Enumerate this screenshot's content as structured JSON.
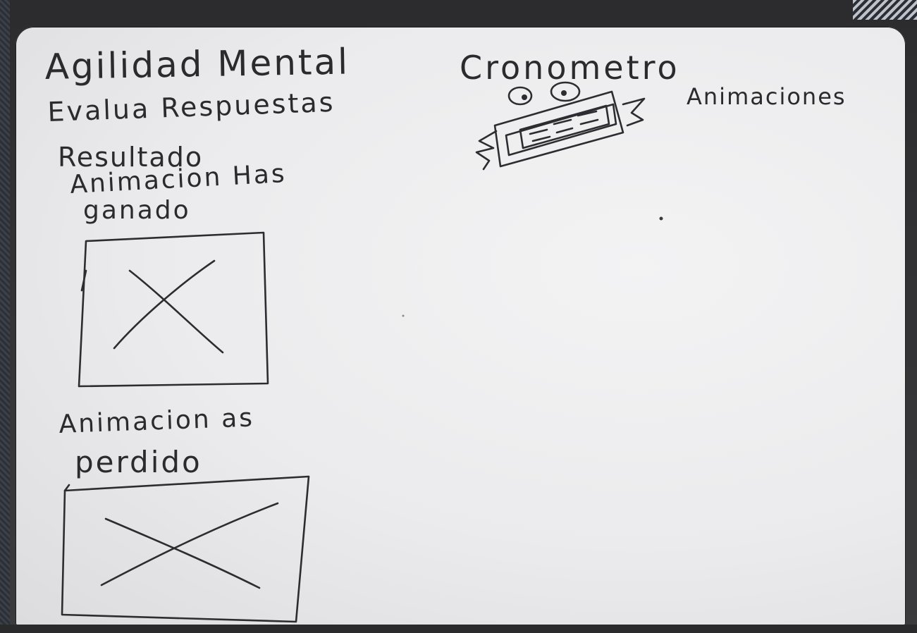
{
  "board": {
    "title": "Agilidad Mental",
    "line2": "Evalua Respuestas",
    "line3": "Resultado",
    "win_label_1": "Animacion Has",
    "win_label_2": "ganado",
    "lose_label_1": "Animacion as",
    "lose_label_2": "perdido",
    "timer_label": "Cronometro",
    "animations_label": "Animaciones"
  },
  "colors": {
    "ink": "#2d2d31",
    "board": "#ececee",
    "frame": "#2c2c2e"
  }
}
